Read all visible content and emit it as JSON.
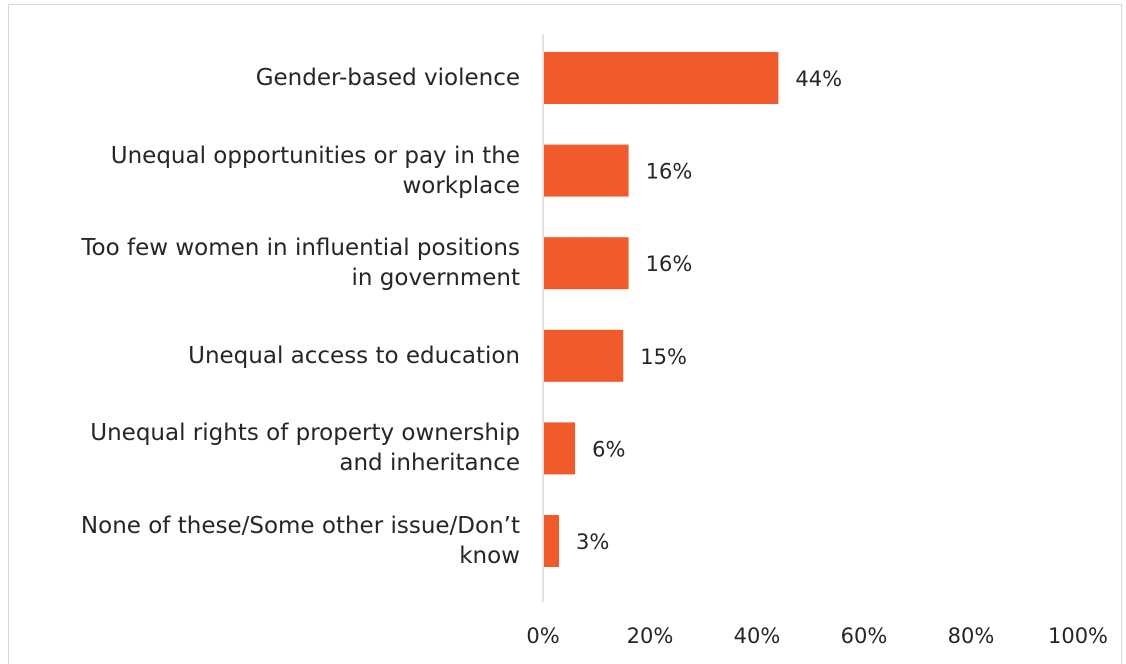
{
  "chart_data": {
    "type": "bar",
    "orientation": "horizontal",
    "categories": [
      "Gender-based violence",
      "Unequal opportunities or pay in the workplace",
      "Too few women in influential positions in government",
      "Unequal access to education",
      "Unequal rights of property ownership and inheritance",
      "None of these/Some other issue/Don’t know"
    ],
    "category_lines": [
      [
        "Gender-based violence"
      ],
      [
        "Unequal opportunities or pay in the",
        "workplace"
      ],
      [
        "Too few women in influential positions",
        "in government"
      ],
      [
        "Unequal access to education"
      ],
      [
        "Unequal rights of property ownership",
        "and inheritance"
      ],
      [
        "None of these/Some other issue/Don’t",
        "know"
      ]
    ],
    "values": [
      44,
      16,
      16,
      15,
      6,
      3
    ],
    "data_labels": [
      "44%",
      "16%",
      "16%",
      "15%",
      "6%",
      "3%"
    ],
    "xlim": [
      0,
      100
    ],
    "x_ticks": [
      "0%",
      "20%",
      "40%",
      "60%",
      "80%",
      "100%"
    ],
    "bar_color": "#f15a2b",
    "grid": false,
    "legend": "none"
  }
}
